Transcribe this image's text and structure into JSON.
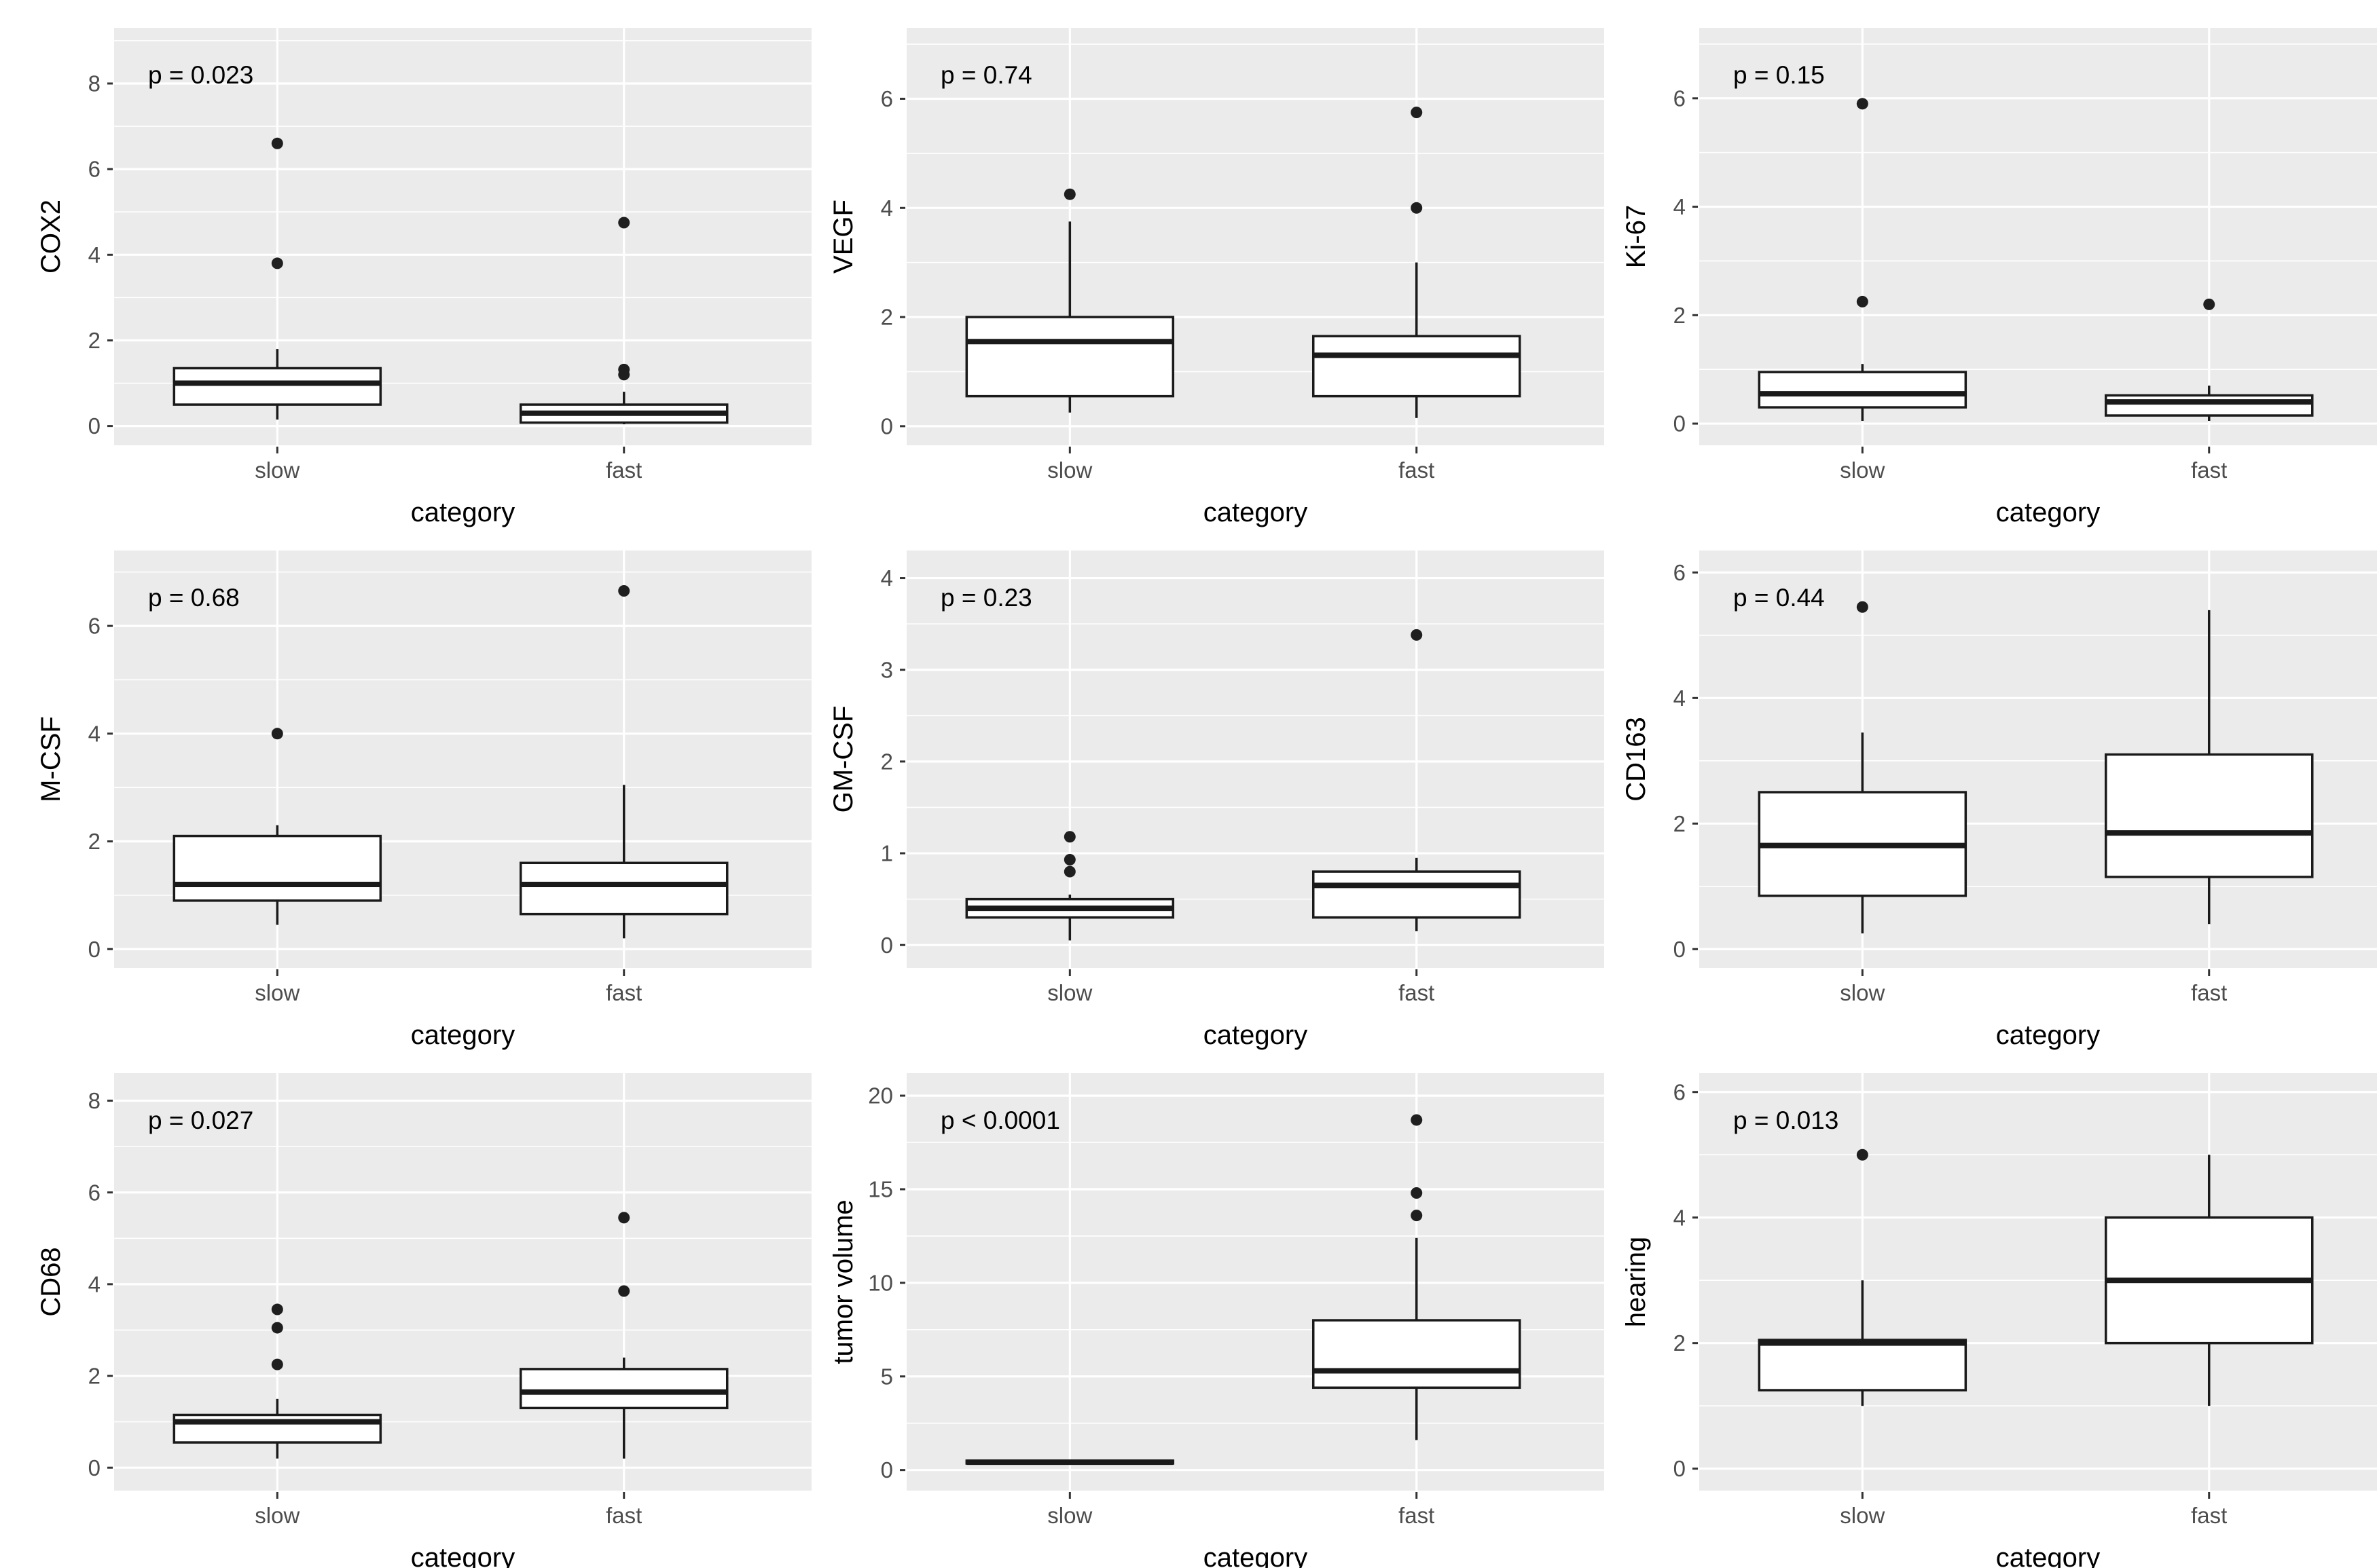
{
  "page": {
    "background": "#FFFFFF"
  },
  "figure": {
    "kind": "boxplot-grid",
    "rows": 3,
    "cols": 3,
    "xlabel": "category",
    "categories": [
      "slow",
      "fast"
    ],
    "colors": {
      "page_bg": "#FFFFFF",
      "panel_bg": "#EBEBEB",
      "grid": "#FFFFFF",
      "box_stroke": "#1A1A1A",
      "box_fill": "#FFFFFF",
      "outlier": "#1F1F1F",
      "tick_label": "#4D4D4D",
      "axis_title": "#000000",
      "annotation": "#000000",
      "tick_mark": "#333333"
    }
  },
  "chart_data": [
    {
      "type": "boxplot",
      "ylabel": "COX2",
      "xlabel": "category",
      "annotation": "p = 0.023",
      "yticks": [
        0,
        2,
        4,
        6,
        8
      ],
      "ylim": [
        -0.45,
        9.3
      ],
      "categories": [
        "slow",
        "fast"
      ],
      "series": [
        {
          "name": "slow",
          "whisker_min": 0.15,
          "q1": 0.5,
          "median": 1.0,
          "q3": 1.35,
          "whisker_max": 1.8,
          "outliers": [
            3.8,
            6.6
          ]
        },
        {
          "name": "fast",
          "whisker_min": 0.04,
          "q1": 0.08,
          "median": 0.3,
          "q3": 0.5,
          "whisker_max": 0.8,
          "outliers": [
            1.2,
            1.32,
            4.75
          ]
        }
      ]
    },
    {
      "type": "boxplot",
      "ylabel": "VEGF",
      "xlabel": "category",
      "annotation": "p = 0.74",
      "yticks": [
        0,
        2,
        4,
        6
      ],
      "ylim": [
        -0.35,
        7.3
      ],
      "categories": [
        "slow",
        "fast"
      ],
      "series": [
        {
          "name": "slow",
          "whisker_min": 0.25,
          "q1": 0.55,
          "median": 1.55,
          "q3": 2.0,
          "whisker_max": 3.75,
          "outliers": [
            4.25
          ]
        },
        {
          "name": "fast",
          "whisker_min": 0.15,
          "q1": 0.55,
          "median": 1.3,
          "q3": 1.65,
          "whisker_max": 3.0,
          "outliers": [
            4.0,
            5.75
          ]
        }
      ]
    },
    {
      "type": "boxplot",
      "ylabel": "Ki-67",
      "xlabel": "category",
      "annotation": "p = 0.15",
      "yticks": [
        0,
        2,
        4,
        6
      ],
      "ylim": [
        -0.4,
        7.3
      ],
      "categories": [
        "slow",
        "fast"
      ],
      "series": [
        {
          "name": "slow",
          "whisker_min": 0.05,
          "q1": 0.3,
          "median": 0.55,
          "q3": 0.95,
          "whisker_max": 1.1,
          "outliers": [
            2.25,
            5.9
          ]
        },
        {
          "name": "fast",
          "whisker_min": 0.05,
          "q1": 0.15,
          "median": 0.4,
          "q3": 0.52,
          "whisker_max": 0.7,
          "outliers": [
            2.2
          ]
        }
      ]
    },
    {
      "type": "boxplot",
      "ylabel": "M-CSF",
      "xlabel": "category",
      "annotation": "p = 0.68",
      "yticks": [
        0,
        2,
        4,
        6
      ],
      "ylim": [
        -0.35,
        7.4
      ],
      "categories": [
        "slow",
        "fast"
      ],
      "series": [
        {
          "name": "slow",
          "whisker_min": 0.45,
          "q1": 0.9,
          "median": 1.2,
          "q3": 2.1,
          "whisker_max": 2.3,
          "outliers": [
            4.0
          ]
        },
        {
          "name": "fast",
          "whisker_min": 0.2,
          "q1": 0.65,
          "median": 1.2,
          "q3": 1.6,
          "whisker_max": 3.05,
          "outliers": [
            6.65
          ]
        }
      ]
    },
    {
      "type": "boxplot",
      "ylabel": "GM-CSF",
      "xlabel": "category",
      "annotation": "p = 0.23",
      "yticks": [
        0,
        1,
        2,
        3,
        4
      ],
      "ylim": [
        -0.25,
        4.3
      ],
      "categories": [
        "slow",
        "fast"
      ],
      "series": [
        {
          "name": "slow",
          "whisker_min": 0.05,
          "q1": 0.3,
          "median": 0.4,
          "q3": 0.5,
          "whisker_max": 0.55,
          "outliers": [
            0.8,
            0.93,
            1.18
          ]
        },
        {
          "name": "fast",
          "whisker_min": 0.15,
          "q1": 0.3,
          "median": 0.65,
          "q3": 0.8,
          "whisker_max": 0.95,
          "outliers": [
            3.38
          ]
        }
      ]
    },
    {
      "type": "boxplot",
      "ylabel": "CD163",
      "xlabel": "category",
      "annotation": "p = 0.44",
      "yticks": [
        0,
        2,
        4,
        6
      ],
      "ylim": [
        -0.3,
        6.35
      ],
      "categories": [
        "slow",
        "fast"
      ],
      "series": [
        {
          "name": "slow",
          "whisker_min": 0.25,
          "q1": 0.85,
          "median": 1.65,
          "q3": 2.5,
          "whisker_max": 3.45,
          "outliers": [
            5.45
          ]
        },
        {
          "name": "fast",
          "whisker_min": 0.4,
          "q1": 1.15,
          "median": 1.85,
          "q3": 3.1,
          "whisker_max": 5.4,
          "outliers": []
        }
      ]
    },
    {
      "type": "boxplot",
      "ylabel": "CD68",
      "xlabel": "category",
      "annotation": "p = 0.027",
      "yticks": [
        0,
        2,
        4,
        6,
        8
      ],
      "ylim": [
        -0.5,
        8.6
      ],
      "categories": [
        "slow",
        "fast"
      ],
      "series": [
        {
          "name": "slow",
          "whisker_min": 0.2,
          "q1": 0.55,
          "median": 1.0,
          "q3": 1.15,
          "whisker_max": 1.5,
          "outliers": [
            2.25,
            3.05,
            3.45
          ]
        },
        {
          "name": "fast",
          "whisker_min": 0.2,
          "q1": 1.3,
          "median": 1.65,
          "q3": 2.15,
          "whisker_max": 2.4,
          "outliers": [
            3.85,
            5.45
          ]
        }
      ]
    },
    {
      "type": "boxplot",
      "ylabel": "tumor volume",
      "xlabel": "category",
      "annotation": "p < 0.0001",
      "yticks": [
        0,
        5,
        10,
        15,
        20
      ],
      "ylim": [
        -1.1,
        21.2
      ],
      "categories": [
        "slow",
        "fast"
      ],
      "series": [
        {
          "name": "slow",
          "whisker_min": 0.3,
          "q1": 0.35,
          "median": 0.42,
          "q3": 0.5,
          "whisker_max": 0.55,
          "outliers": []
        },
        {
          "name": "fast",
          "whisker_min": 1.6,
          "q1": 4.4,
          "median": 5.3,
          "q3": 8.0,
          "whisker_max": 12.4,
          "outliers": [
            13.6,
            14.8,
            18.7
          ]
        }
      ]
    },
    {
      "type": "boxplot",
      "ylabel": "hearing",
      "xlabel": "category",
      "annotation": "p = 0.013",
      "yticks": [
        0,
        2,
        4,
        6
      ],
      "ylim": [
        -0.35,
        6.3
      ],
      "categories": [
        "slow",
        "fast"
      ],
      "series": [
        {
          "name": "slow",
          "whisker_min": 1.0,
          "q1": 1.25,
          "median": 2.0,
          "q3": 2.05,
          "whisker_max": 3.0,
          "outliers": [
            5.0
          ]
        },
        {
          "name": "fast",
          "whisker_min": 1.0,
          "q1": 2.0,
          "median": 3.0,
          "q3": 4.0,
          "whisker_max": 5.0,
          "outliers": []
        }
      ]
    }
  ]
}
